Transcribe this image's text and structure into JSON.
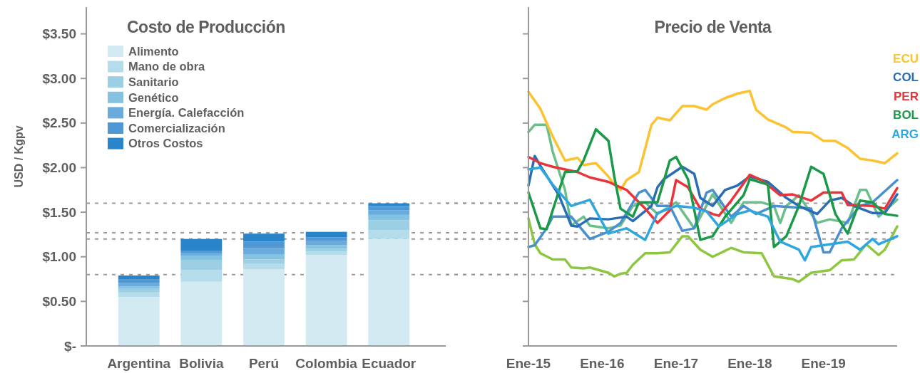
{
  "chart_data": [
    {
      "type": "bar",
      "title": "Costo de Producción",
      "ylabel": "USD / Kgpv",
      "stacked": true,
      "legend": "top left",
      "categories": [
        "Argentina",
        "Bolivia",
        "Perú",
        "Colombia",
        "Ecuador"
      ],
      "series": [
        {
          "name": "Alimento",
          "color": "#d3eaf2",
          "values": [
            0.55,
            0.72,
            0.86,
            1.02,
            1.2
          ]
        },
        {
          "name": "Mano de obra",
          "color": "#b5dcea",
          "values": [
            0.05,
            0.13,
            0.06,
            0.04,
            0.1
          ]
        },
        {
          "name": "Sanitario",
          "color": "#9ccfe4",
          "values": [
            0.04,
            0.11,
            0.05,
            0.03,
            0.11
          ]
        },
        {
          "name": "Genético",
          "color": "#84c2e2",
          "values": [
            0.03,
            0.05,
            0.06,
            0.04,
            0.06
          ]
        },
        {
          "name": "Energía. Calefacción",
          "color": "#69abdc",
          "values": [
            0.04,
            0.03,
            0.07,
            0.05,
            0.05
          ]
        },
        {
          "name": "Comercialización",
          "color": "#4f98d3",
          "values": [
            0.04,
            0.03,
            0.07,
            0.04,
            0.05
          ]
        },
        {
          "name": "Otros Costos",
          "color": "#2a84ca",
          "values": [
            0.04,
            0.13,
            0.09,
            0.06,
            0.03
          ]
        }
      ],
      "ylim": [
        0,
        3.8
      ],
      "yticks": [
        {
          "value": 0,
          "label": "$-"
        },
        {
          "value": 0.5,
          "label": "$0.50"
        },
        {
          "value": 1,
          "label": "$1.00"
        },
        {
          "value": 1.5,
          "label": "$1.50"
        },
        {
          "value": 2,
          "label": "$2.00"
        },
        {
          "value": 2.5,
          "label": "$2.50"
        },
        {
          "value": 3,
          "label": "$3.00"
        },
        {
          "value": 3.5,
          "label": "$3.50"
        }
      ],
      "ref_lines": [
        {
          "axis": "y",
          "value": 0.8,
          "color": "#999999",
          "line_style": "dashed"
        },
        {
          "axis": "y",
          "value": 1.2,
          "color": "#999999",
          "line_style": "dashed"
        },
        {
          "axis": "y",
          "value": 1.27,
          "color": "#999999",
          "line_style": "dashed"
        },
        {
          "axis": "y",
          "value": 1.6,
          "color": "#999999",
          "line_style": "dashed"
        }
      ]
    },
    {
      "type": "line",
      "title": "Precio de Venta",
      "legend": "right",
      "tick_labels": "x",
      "line_style": "solid",
      "xlim": [
        "2015-01",
        "2020-01"
      ],
      "xticks": [
        {
          "value": "2015-01",
          "label": "Ene-15"
        },
        {
          "value": "2016-01",
          "label": "Ene-16"
        },
        {
          "value": "2017-01",
          "label": "Ene-17"
        },
        {
          "value": "2018-01",
          "label": "Ene-18"
        },
        {
          "value": "2019-01",
          "label": "Ene-19"
        }
      ],
      "ylim": [
        0,
        3.8
      ],
      "yticks": [
        {
          "value": 0,
          "label": null
        },
        {
          "value": 0.5,
          "label": null
        },
        {
          "value": 1,
          "label": null
        },
        {
          "value": 1.5,
          "label": null
        },
        {
          "value": 2,
          "label": null
        },
        {
          "value": 2.5,
          "label": null
        },
        {
          "value": 3,
          "label": null
        },
        {
          "value": 3.5,
          "label": null
        }
      ],
      "ref_lines": [
        {
          "axis": "y",
          "value": 0.8,
          "color": "#999999",
          "line_style": "dashed"
        },
        {
          "axis": "y",
          "value": 1.2,
          "color": "#999999",
          "line_style": "dashed"
        },
        {
          "axis": "y",
          "value": 1.27,
          "color": "#999999",
          "line_style": "dashed"
        },
        {
          "axis": "y",
          "value": 1.6,
          "color": "#999999",
          "line_style": "dashed"
        }
      ],
      "series": [
        {
          "color": "#8dc63f",
          "x": [
            "2015-01",
            "2015-02",
            "2015-03",
            "2015-05",
            "2015-07",
            "2015-08",
            "2015-10",
            "2015-11",
            "2016-02",
            "2016-03",
            "2016-04",
            "2016-05",
            "2016-06",
            "2016-08",
            "2016-10",
            "2016-12",
            "2017-02",
            "2017-03",
            "2017-05",
            "2017-07",
            "2017-10",
            "2017-12",
            "2018-03",
            "2018-05",
            "2018-08",
            "2018-09",
            "2018-11",
            "2019-02",
            "2019-04",
            "2019-06",
            "2019-08",
            "2019-10",
            "2019-11",
            "2020-01"
          ],
          "values": [
            1.43,
            1.14,
            1.04,
            0.97,
            0.97,
            0.88,
            0.87,
            0.88,
            0.82,
            0.78,
            0.81,
            0.82,
            0.91,
            1.04,
            1.04,
            1.05,
            1.23,
            1.23,
            1.08,
            1.0,
            1.1,
            1.05,
            1.04,
            0.78,
            0.75,
            0.72,
            0.82,
            0.85,
            0.96,
            0.97,
            1.14,
            1.02,
            1.08,
            1.34
          ]
        },
        {
          "color": "#6bbf8a",
          "x": [
            "2015-01",
            "2015-02",
            "2015-04",
            "2015-05",
            "2015-07",
            "2015-08",
            "2015-10",
            "2015-11",
            "2016-02",
            "2016-04",
            "2016-06",
            "2016-08",
            "2016-10",
            "2017-01",
            "2017-03",
            "2017-04",
            "2017-07",
            "2017-10",
            "2017-12",
            "2018-03",
            "2018-05",
            "2018-06",
            "2018-07",
            "2018-09",
            "2018-12",
            "2019-02",
            "2019-05",
            "2019-07",
            "2019-08",
            "2019-10",
            "2020-01"
          ],
          "values": [
            2.4,
            2.48,
            2.48,
            2.18,
            1.75,
            1.35,
            1.45,
            1.35,
            1.32,
            1.35,
            1.57,
            1.61,
            1.48,
            1.61,
            1.42,
            1.32,
            1.7,
            1.38,
            1.61,
            1.61,
            1.57,
            1.38,
            1.57,
            1.69,
            1.38,
            1.42,
            1.38,
            1.75,
            1.75,
            1.45,
            1.64
          ]
        },
        {
          "color": "#4a90cf",
          "x": [
            "2015-01",
            "2015-02",
            "2015-04",
            "2015-05",
            "2015-08",
            "2015-11",
            "2016-02",
            "2016-04",
            "2016-07",
            "2016-08",
            "2016-10",
            "2016-12",
            "2017-02",
            "2017-04",
            "2017-06",
            "2017-07",
            "2017-10",
            "2017-12",
            "2018-02",
            "2018-05",
            "2018-11",
            "2019-01",
            "2019-02",
            "2019-04",
            "2019-07",
            "2019-09",
            "2020-01"
          ],
          "values": [
            1.11,
            1.13,
            1.32,
            1.45,
            1.45,
            1.2,
            1.28,
            1.38,
            1.72,
            1.75,
            1.57,
            1.57,
            1.29,
            1.32,
            1.72,
            1.75,
            1.45,
            1.57,
            1.48,
            1.57,
            1.54,
            1.05,
            1.05,
            1.32,
            1.57,
            1.61,
            1.86
          ]
        },
        {
          "name": "ECU",
          "color": "#fcc230",
          "x": [
            "2015-01",
            "2015-03",
            "2015-05",
            "2015-07",
            "2015-09",
            "2015-10",
            "2015-12",
            "2016-02",
            "2016-03",
            "2016-04",
            "2016-05",
            "2016-07",
            "2016-09",
            "2016-10",
            "2016-12",
            "2017-02",
            "2017-04",
            "2017-06",
            "2017-07",
            "2017-09",
            "2017-11",
            "2018-01",
            "2018-02",
            "2018-04",
            "2018-07",
            "2018-08",
            "2018-11",
            "2019-01",
            "2019-03",
            "2019-05",
            "2019-07",
            "2019-09",
            "2019-11",
            "2020-01"
          ],
          "values": [
            2.85,
            2.66,
            2.35,
            2.08,
            2.11,
            2.03,
            2.05,
            1.9,
            1.81,
            1.75,
            1.86,
            1.95,
            2.48,
            2.56,
            2.53,
            2.69,
            2.69,
            2.65,
            2.71,
            2.78,
            2.83,
            2.86,
            2.65,
            2.54,
            2.45,
            2.4,
            2.39,
            2.3,
            2.3,
            2.22,
            2.1,
            2.08,
            2.05,
            2.16
          ]
        },
        {
          "name": "COL",
          "color": "#2a6db5",
          "x": [
            "2015-01",
            "2015-02",
            "2015-03",
            "2015-06",
            "2015-08",
            "2015-09",
            "2015-11",
            "2016-02",
            "2016-05",
            "2016-06",
            "2016-09",
            "2016-10",
            "2016-11",
            "2017-02",
            "2017-04",
            "2017-05",
            "2017-07",
            "2017-09",
            "2017-11",
            "2018-01",
            "2018-04",
            "2018-07",
            "2018-09",
            "2018-12",
            "2019-02",
            "2019-04",
            "2019-06",
            "2019-09",
            "2019-11",
            "2020-01"
          ],
          "values": [
            1.8,
            2.13,
            2.02,
            1.69,
            1.35,
            1.34,
            1.43,
            1.42,
            1.45,
            1.4,
            1.57,
            1.78,
            1.87,
            2.01,
            1.93,
            1.66,
            1.57,
            1.75,
            1.8,
            1.9,
            1.84,
            1.66,
            1.57,
            1.48,
            1.63,
            1.66,
            1.57,
            1.49,
            1.49,
            1.7
          ]
        },
        {
          "name": "PER",
          "color": "#e8343a",
          "x": [
            "2015-01",
            "2015-03",
            "2015-05",
            "2015-07",
            "2015-09",
            "2015-11",
            "2016-02",
            "2016-03",
            "2016-05",
            "2016-07",
            "2016-08",
            "2016-10",
            "2016-12",
            "2017-01",
            "2017-03",
            "2017-05",
            "2017-07",
            "2017-08",
            "2017-10",
            "2018-01",
            "2018-03",
            "2018-06",
            "2018-08",
            "2018-11",
            "2019-01",
            "2019-04",
            "2019-05",
            "2019-09",
            "2019-11",
            "2020-01"
          ],
          "values": [
            2.12,
            2.05,
            2.01,
            1.98,
            1.95,
            1.89,
            1.84,
            1.81,
            1.75,
            1.61,
            1.54,
            1.38,
            1.52,
            1.86,
            1.78,
            1.54,
            1.48,
            1.46,
            1.63,
            1.92,
            1.86,
            1.69,
            1.7,
            1.63,
            1.72,
            1.72,
            1.58,
            1.57,
            1.54,
            1.77
          ]
        },
        {
          "name": "BOL",
          "color": "#1a9a48",
          "x": [
            "2015-01",
            "2015-03",
            "2015-04",
            "2015-07",
            "2015-09",
            "2015-10",
            "2015-12",
            "2016-02",
            "2016-03",
            "2016-04",
            "2016-06",
            "2016-07",
            "2016-10",
            "2016-12",
            "2017-01",
            "2017-03",
            "2017-05",
            "2017-07",
            "2017-09",
            "2017-12",
            "2018-01",
            "2018-04",
            "2018-05",
            "2018-07",
            "2018-09",
            "2018-11",
            "2019-01",
            "2019-03",
            "2019-05",
            "2019-07",
            "2019-09",
            "2019-11",
            "2020-01"
          ],
          "values": [
            1.72,
            1.32,
            1.31,
            1.95,
            1.96,
            2.08,
            2.43,
            2.3,
            1.9,
            1.54,
            1.45,
            1.61,
            1.61,
            2.08,
            2.12,
            1.87,
            1.19,
            1.23,
            1.45,
            1.69,
            1.87,
            1.81,
            1.11,
            1.23,
            1.57,
            2.01,
            1.93,
            1.48,
            1.26,
            1.63,
            1.61,
            1.48,
            1.46
          ]
        },
        {
          "name": "ARG",
          "color": "#2ea6e0",
          "x": [
            "2015-01",
            "2015-03",
            "2015-05",
            "2015-08",
            "2015-11",
            "2016-02",
            "2016-05",
            "2016-08",
            "2016-10",
            "2017-01",
            "2017-04",
            "2017-06",
            "2017-08",
            "2017-11",
            "2018-01",
            "2018-04",
            "2018-06",
            "2018-09",
            "2018-10",
            "2018-11",
            "2019-01",
            "2019-05",
            "2019-07",
            "2019-09",
            "2019-10",
            "2020-01"
          ],
          "values": [
            1.98,
            2.0,
            1.81,
            1.57,
            1.64,
            1.26,
            1.32,
            1.19,
            1.49,
            1.57,
            1.55,
            1.51,
            1.34,
            1.48,
            1.52,
            1.45,
            1.17,
            1.08,
            0.96,
            1.11,
            1.13,
            1.17,
            1.08,
            1.2,
            1.14,
            1.23
          ]
        }
      ]
    }
  ]
}
